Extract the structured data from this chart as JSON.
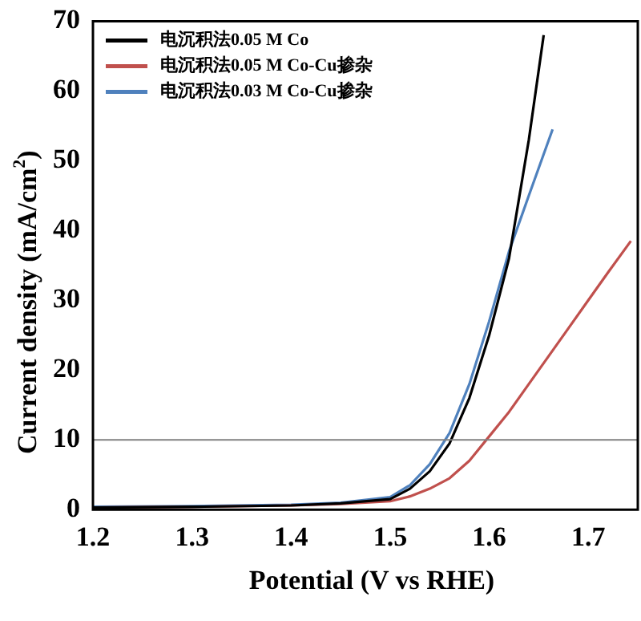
{
  "chart_data": {
    "type": "line",
    "xlabel": "Potential (V vs RHE)",
    "ylabel": "Current density (mA/cm$^{2}$)",
    "xlim": [
      1.2,
      1.75
    ],
    "xticks": [
      1.2,
      1.3,
      1.4,
      1.5,
      1.6,
      1.7
    ],
    "ylim": [
      0,
      70
    ],
    "yticks": [
      0,
      10,
      20,
      30,
      40,
      50,
      60,
      70
    ],
    "grid": false,
    "legend": "top left",
    "marker": "none",
    "line_style": "solid",
    "ref_lines": [
      {
        "axis": "y",
        "value": 10,
        "color": "#808080"
      }
    ],
    "series": [
      {
        "name": "电沉积法0.05 M Co",
        "color": "#000000",
        "x": [
          1.2,
          1.3,
          1.4,
          1.45,
          1.5,
          1.52,
          1.54,
          1.56,
          1.58,
          1.6,
          1.62,
          1.64,
          1.655
        ],
        "values": [
          0.3,
          0.4,
          0.6,
          0.9,
          1.5,
          3,
          5.5,
          9.5,
          16,
          25,
          36,
          53,
          68
        ]
      },
      {
        "name": "电沉积法0.05 M Co-Cu掺杂",
        "color": "#c0504d",
        "x": [
          1.2,
          1.3,
          1.4,
          1.45,
          1.5,
          1.52,
          1.54,
          1.56,
          1.58,
          1.6,
          1.62,
          1.64,
          1.66,
          1.68,
          1.7,
          1.72,
          1.743
        ],
        "values": [
          0.3,
          0.4,
          0.6,
          0.8,
          1.2,
          1.9,
          3,
          4.5,
          7,
          10.5,
          14,
          18,
          22,
          26,
          30,
          34,
          38.5
        ]
      },
      {
        "name": "电沉积法0.03 M Co-Cu掺杂",
        "color": "#4f81bd",
        "x": [
          1.2,
          1.3,
          1.4,
          1.45,
          1.5,
          1.52,
          1.54,
          1.56,
          1.58,
          1.6,
          1.62,
          1.64,
          1.664
        ],
        "values": [
          0.4,
          0.5,
          0.7,
          1,
          1.8,
          3.5,
          6.5,
          11,
          18,
          27,
          37,
          45,
          54.5
        ]
      }
    ]
  }
}
